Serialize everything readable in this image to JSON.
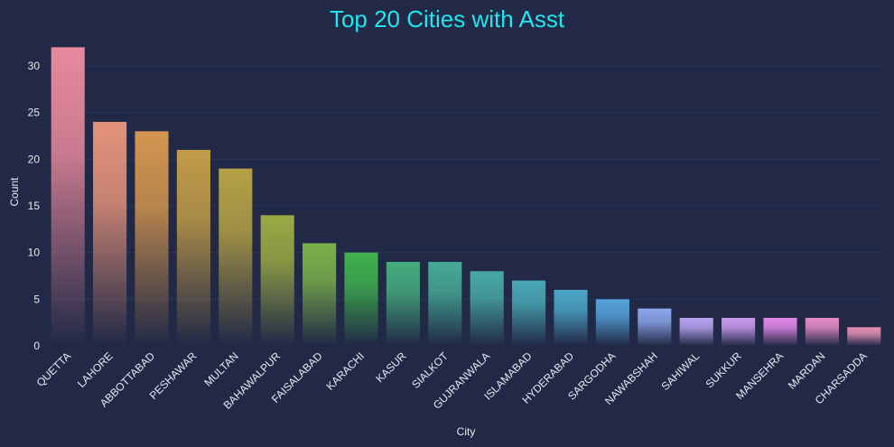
{
  "chart_data": {
    "type": "bar",
    "title": "Top 20 Cities with Asst",
    "xlabel": "City",
    "ylabel": "Count",
    "ylim": [
      0,
      33
    ],
    "yticks": [
      0,
      5,
      10,
      15,
      20,
      25,
      30
    ],
    "grid": true,
    "categories": [
      "QUETTA",
      "LAHORE",
      "ABBOTTABAD",
      "PESHAWAR",
      "MULTAN",
      "BAHAWALPUR",
      "FAISALABAD",
      "KARACHI",
      "KASUR",
      "SIALKOT",
      "GUJRANWALA",
      "ISLAMABAD",
      "HYDERABAD",
      "SARGODHA",
      "NAWABSHAH",
      "SAHIWAL",
      "SUKKUR",
      "MANSEHRA",
      "MARDAN",
      "CHARSADDA"
    ],
    "values": [
      32,
      24,
      23,
      21,
      19,
      14,
      11,
      10,
      9,
      9,
      8,
      7,
      6,
      5,
      4,
      3,
      3,
      3,
      3,
      2
    ],
    "colors": [
      "#e8899c",
      "#e4927a",
      "#d2954e",
      "#c19c48",
      "#b4a145",
      "#9aa944",
      "#7bb04a",
      "#3eb14d",
      "#45ab7e",
      "#46a995",
      "#47a8a5",
      "#48a6b4",
      "#4aa5c5",
      "#55a3db",
      "#8ca6ec",
      "#b6a3ef",
      "#c99aef",
      "#e187e6",
      "#e58bc6",
      "#e58fb4"
    ]
  }
}
